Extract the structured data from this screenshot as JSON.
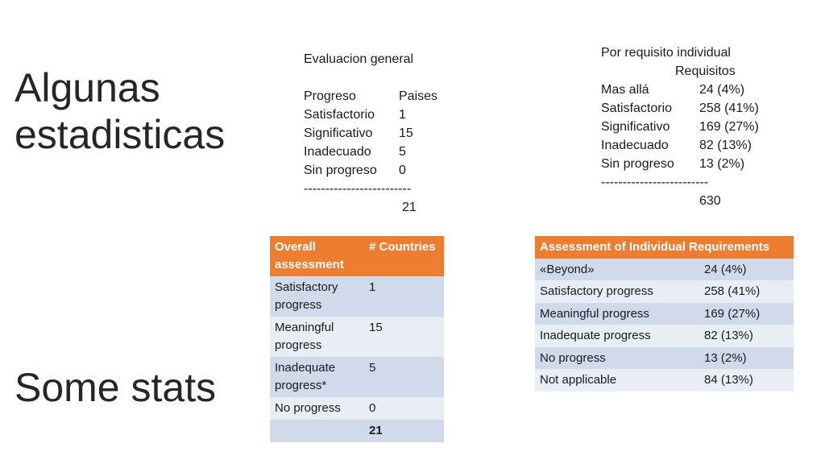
{
  "titles": {
    "spanish": [
      "Algunas",
      "estadisticas"
    ],
    "english": "Some stats"
  },
  "general_text": {
    "heading": "Evaluacion general",
    "col_headers": [
      "Progreso",
      "Paises"
    ],
    "rows": [
      [
        "Satisfactorio",
        "1"
      ],
      [
        "Significativo",
        "15"
      ],
      [
        "Inadecuado",
        "5"
      ],
      [
        "Sin progreso",
        "0"
      ]
    ],
    "separator": "-------------------------",
    "total": "21"
  },
  "individual_text": {
    "heading": "Por requisito individual",
    "subheading": "Requisitos",
    "rows": [
      [
        "Mas allá",
        "24 (4%)"
      ],
      [
        "Satisfactorio",
        "258 (41%)"
      ],
      [
        "Significativo",
        "169 (27%)"
      ],
      [
        "Inadecuado",
        "82 (13%)"
      ],
      [
        "Sin progreso",
        "13 (2%)"
      ]
    ],
    "separator": "-------------------------",
    "total": "630"
  },
  "overall_table": {
    "headers": [
      "Overall assessment",
      "# Countries"
    ],
    "rows": [
      [
        "Satisfactory progress",
        "1"
      ],
      [
        "Meaningful progress",
        "15"
      ],
      [
        "Inadequate progress*",
        "5"
      ],
      [
        "No progress",
        "0"
      ]
    ],
    "total": "21"
  },
  "individual_table": {
    "header": "Assessment of Individual Requirements",
    "rows": [
      [
        "«Beyond»",
        "24 (4%)"
      ],
      [
        "Satisfactory progress",
        "258 (41%)"
      ],
      [
        "Meaningful progress",
        "169 (27%)"
      ],
      [
        "Inadequate progress",
        "82 (13%)"
      ],
      [
        "No progress",
        "13 (2%)"
      ],
      [
        "Not applicable",
        "84 (13%)"
      ]
    ]
  },
  "colors": {
    "header_orange": "#ed7d31",
    "row_dark": "#d0daea",
    "row_light": "#e9edf4"
  }
}
